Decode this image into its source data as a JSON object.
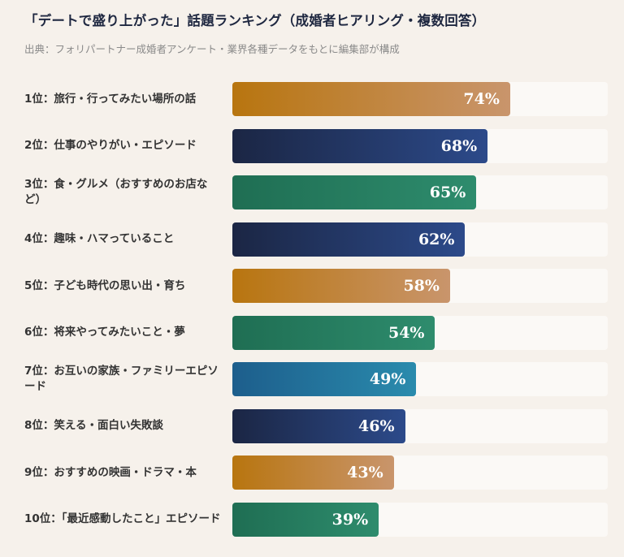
{
  "title": "「デートで盛り上がった」話題ランキング（成婚者ヒアリング・複数回答）",
  "source": "出典：フォリパートナー成婚者アンケート・業界各種データをもとに編集部が構成",
  "colors": {
    "orange": "#b8750f",
    "navy": "#1b2644",
    "green": "#1f6e53",
    "blue": "#1d5e8c",
    "background": "#f6f1eb",
    "track": "#fbf9f6"
  },
  "rows": [
    {
      "label": "1位：旅行・行ってみたい場所の話",
      "value": 74,
      "pct": "74%",
      "color": "orange"
    },
    {
      "label": "2位：仕事のやりがい・エピソード",
      "value": 68,
      "pct": "68%",
      "color": "navy"
    },
    {
      "label": "3位：食・グルメ（おすすめのお店など）",
      "value": 65,
      "pct": "65%",
      "color": "green"
    },
    {
      "label": "4位：趣味・ハマっていること",
      "value": 62,
      "pct": "62%",
      "color": "navy"
    },
    {
      "label": "5位：子ども時代の思い出・育ち",
      "value": 58,
      "pct": "58%",
      "color": "orange"
    },
    {
      "label": "6位：将来やってみたいこと・夢",
      "value": 54,
      "pct": "54%",
      "color": "green"
    },
    {
      "label": "7位：お互いの家族・ファミリーエピソード",
      "value": 49,
      "pct": "49%",
      "color": "blue"
    },
    {
      "label": "8位：笑える・面白い失敗談",
      "value": 46,
      "pct": "46%",
      "color": "navy"
    },
    {
      "label": "9位：おすすめの映画・ドラマ・本",
      "value": 43,
      "pct": "43%",
      "color": "orange"
    },
    {
      "label": "10位：「最近感動したこと」エピソード",
      "value": 39,
      "pct": "39%",
      "color": "green"
    }
  ],
  "chart_data": {
    "type": "bar",
    "orientation": "horizontal",
    "title": "「デートで盛り上がった」話題ランキング（成婚者ヒアリング・複数回答）",
    "subtitle": "出典：フォリパートナー成婚者アンケート・業界各種データをもとに編集部が構成",
    "categories": [
      "1位：旅行・行ってみたい場所の話",
      "2位：仕事のやりがい・エピソード",
      "3位：食・グルメ（おすすめのお店など）",
      "4位：趣味・ハマっていること",
      "5位：子ども時代の思い出・育ち",
      "6位：将来やってみたいこと・夢",
      "7位：お互いの家族・ファミリーエピソード",
      "8位：笑える・面白い失敗談",
      "9位：おすすめの映画・ドラマ・本",
      "10位：「最近感動したこと」エピソード"
    ],
    "values": [
      74,
      68,
      65,
      62,
      58,
      54,
      49,
      46,
      43,
      39
    ],
    "xlabel": "",
    "ylabel": "",
    "xlim": [
      0,
      100
    ],
    "unit": "%",
    "grid": false,
    "legend": "none"
  }
}
